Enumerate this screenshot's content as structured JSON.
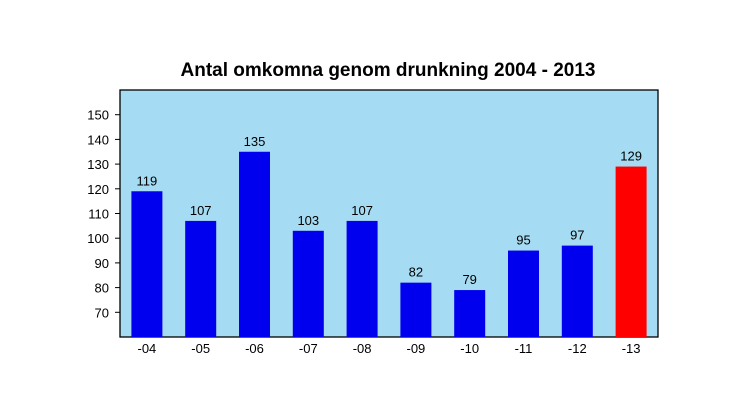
{
  "chart_data": {
    "type": "bar",
    "title": "Antal omkomna genom drunkning 2004 - 2013",
    "xlabel": "",
    "ylabel": "",
    "categories": [
      "-04",
      "-05",
      "-06",
      "-07",
      "-08",
      "-09",
      "-10",
      "-11",
      "-12",
      "-13"
    ],
    "values": [
      119,
      107,
      135,
      103,
      107,
      82,
      79,
      95,
      97,
      129
    ],
    "data_labels": [
      "119",
      "107",
      "135",
      "103",
      "107",
      "82",
      "79",
      "95",
      "97",
      "129"
    ],
    "y_ticks": [
      70,
      80,
      90,
      100,
      110,
      120,
      130,
      140,
      150
    ],
    "ylim": [
      60,
      160
    ],
    "grid": false,
    "legend": "none",
    "colors": {
      "bar": "#0000ee",
      "highlight_bar": "#ff0000",
      "highlight_index": 9,
      "plot_background": "#a6dcf3",
      "axis": "#000000"
    }
  }
}
